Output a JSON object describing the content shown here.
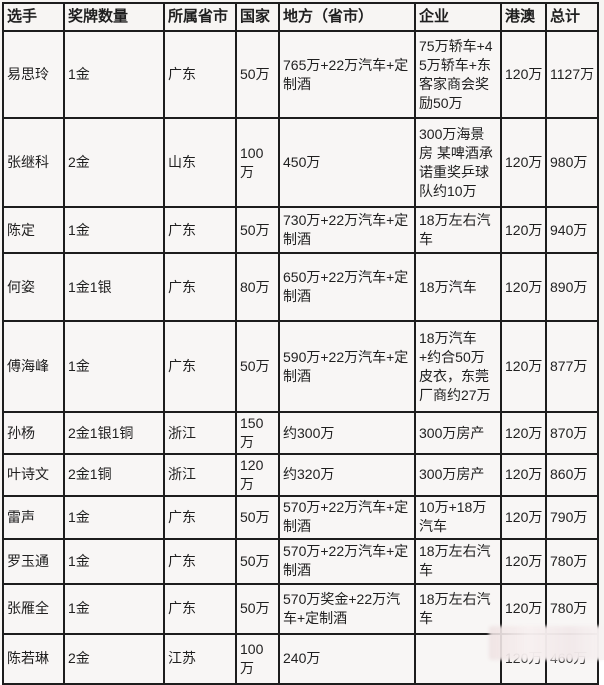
{
  "colors": {
    "page_background": "#f6f4f2",
    "cell_background": "#f8f6f5",
    "border": "#1d1d1d",
    "text": "#1f1f1f",
    "watermark_blur": "#f1e7e6"
  },
  "table": {
    "columns": [
      {
        "key": "athlete",
        "label": "选手"
      },
      {
        "key": "medals",
        "label": "奖牌数量"
      },
      {
        "key": "province",
        "label": "所属省市"
      },
      {
        "key": "national",
        "label": "国家"
      },
      {
        "key": "local",
        "label": "地方（省市）"
      },
      {
        "key": "enterprise",
        "label": "企业"
      },
      {
        "key": "hk_macau",
        "label": "港澳"
      },
      {
        "key": "total",
        "label": "总计"
      }
    ],
    "rows": [
      {
        "cells": [
          "易思玲",
          "1金",
          "广东",
          "50万",
          "765万+22万汽车+定制酒",
          "75万轿车+45万轿车+东客家商会奖励50万",
          "120万",
          "1127万"
        ]
      },
      {
        "cells": [
          "张继科",
          "2金",
          "山东",
          "100万",
          "450万",
          "300万海景房 某啤酒承诺重奖乒球队约10万",
          "120万",
          "980万"
        ]
      },
      {
        "cells": [
          "陈定",
          "1金",
          "广东",
          "50万",
          "730万+22万汽车+定制酒",
          "18万左右汽车",
          "120万",
          "940万"
        ]
      },
      {
        "cells": [
          "何姿",
          "1金1银",
          "广东",
          "80万",
          "650万+22万汽车+定制酒",
          "18万汽车",
          "120万",
          "890万"
        ]
      },
      {
        "cells": [
          "傅海峰",
          "1金",
          "广东",
          "50万",
          "590万+22万汽车+定制酒",
          "18万汽车+约合50万皮衣，东莞厂商约27万",
          "120万",
          "877万"
        ]
      },
      {
        "cells": [
          "孙杨",
          "2金1银1铜",
          "浙江",
          "150万",
          "约300万",
          "300万房产",
          "120万",
          "870万"
        ]
      },
      {
        "cells": [
          "叶诗文",
          "2金1铜",
          "浙江",
          "120万",
          "约320万",
          "300万房产",
          "120万",
          "860万"
        ]
      },
      {
        "cells": [
          "雷声",
          "1金",
          "广东",
          "50万",
          "570万+22万汽车+定制酒",
          "10万+18万汽车",
          "120万",
          "790万"
        ]
      },
      {
        "cells": [
          "罗玉通",
          "1金",
          "广东",
          "50万",
          "570万+22万汽车+定制酒",
          "18万左右汽车",
          "120万",
          "780万"
        ]
      },
      {
        "cells": [
          "张雁全",
          "1金",
          "广东",
          "50万",
          "570万奖金+22万汽车+定制酒",
          "18万左右汽车",
          "120万",
          "780万"
        ]
      },
      {
        "cells": [
          "陈若琳",
          "2金",
          "江苏",
          "100万",
          "240万",
          "",
          "120万",
          "460万"
        ]
      }
    ]
  }
}
